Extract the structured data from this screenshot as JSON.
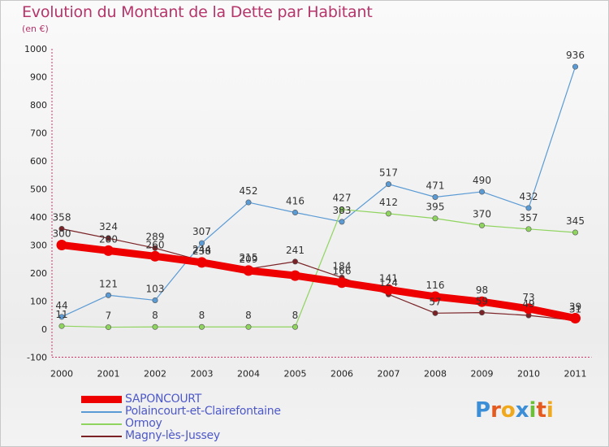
{
  "title": "Evolution du Montant de la Dette par Habitant",
  "subtitle": "(en €)",
  "logo": {
    "letters": [
      {
        "ch": "P",
        "color": "#3c8fd6"
      },
      {
        "ch": "r",
        "color": "#e45a1f"
      },
      {
        "ch": "o",
        "color": "#f0a81d"
      },
      {
        "ch": "x",
        "color": "#3c8fd6"
      },
      {
        "ch": "i",
        "color": "#6dbf3a"
      },
      {
        "ch": "t",
        "color": "#e45a1f"
      },
      {
        "ch": "i",
        "color": "#f0a81d"
      }
    ]
  },
  "chart_data": {
    "type": "line",
    "title": "Evolution du Montant de la Dette par Habitant",
    "ylabel": "(en €)",
    "xlabel": "",
    "ylim": [
      -100,
      1000
    ],
    "yticks": [
      -100,
      0,
      100,
      200,
      300,
      400,
      500,
      600,
      700,
      800,
      900,
      1000
    ],
    "categories": [
      "2000",
      "2001",
      "2002",
      "2003",
      "2004",
      "2005",
      "2006",
      "2007",
      "2008",
      "2009",
      "2010",
      "2011"
    ],
    "grid": false,
    "legend_position": "bottom-left",
    "series": [
      {
        "name": "SAPONCOURT",
        "color": "#ee0000",
        "values": [
          300,
          280,
          260,
          238,
          209,
          191,
          166,
          141,
          116,
          98,
          73,
          39
        ],
        "labels": [
          "300",
          "280",
          "260",
          "238",
          "209",
          "",
          "166",
          "141",
          "116",
          "98",
          "73",
          "39"
        ]
      },
      {
        "name": "Polaincourt-et-Clairefontaine",
        "color": "#5b9bd5",
        "values": [
          44,
          121,
          103,
          307,
          452,
          416,
          383,
          517,
          471,
          490,
          432,
          936
        ],
        "labels": [
          "44",
          "121",
          "103",
          "307",
          "452",
          "416",
          "383",
          "517",
          "471",
          "490",
          "432",
          "936"
        ]
      },
      {
        "name": "Ormoy",
        "color": "#8fd45e",
        "values": [
          11,
          7,
          8,
          8,
          8,
          8,
          427,
          412,
          395,
          370,
          357,
          345
        ],
        "labels": [
          "11",
          "7",
          "8",
          "8",
          "8",
          "8",
          "427",
          "412",
          "395",
          "370",
          "357",
          "345"
        ]
      },
      {
        "name": "Magny-lès-Jussey",
        "color": "#7a2226",
        "values": [
          358,
          324,
          289,
          244,
          215,
          241,
          184,
          124,
          57,
          59,
          49,
          31
        ],
        "labels": [
          "358",
          "324",
          "289",
          "244",
          "215",
          "241",
          "184",
          "124",
          "57",
          "59",
          "49",
          "31"
        ]
      }
    ]
  }
}
